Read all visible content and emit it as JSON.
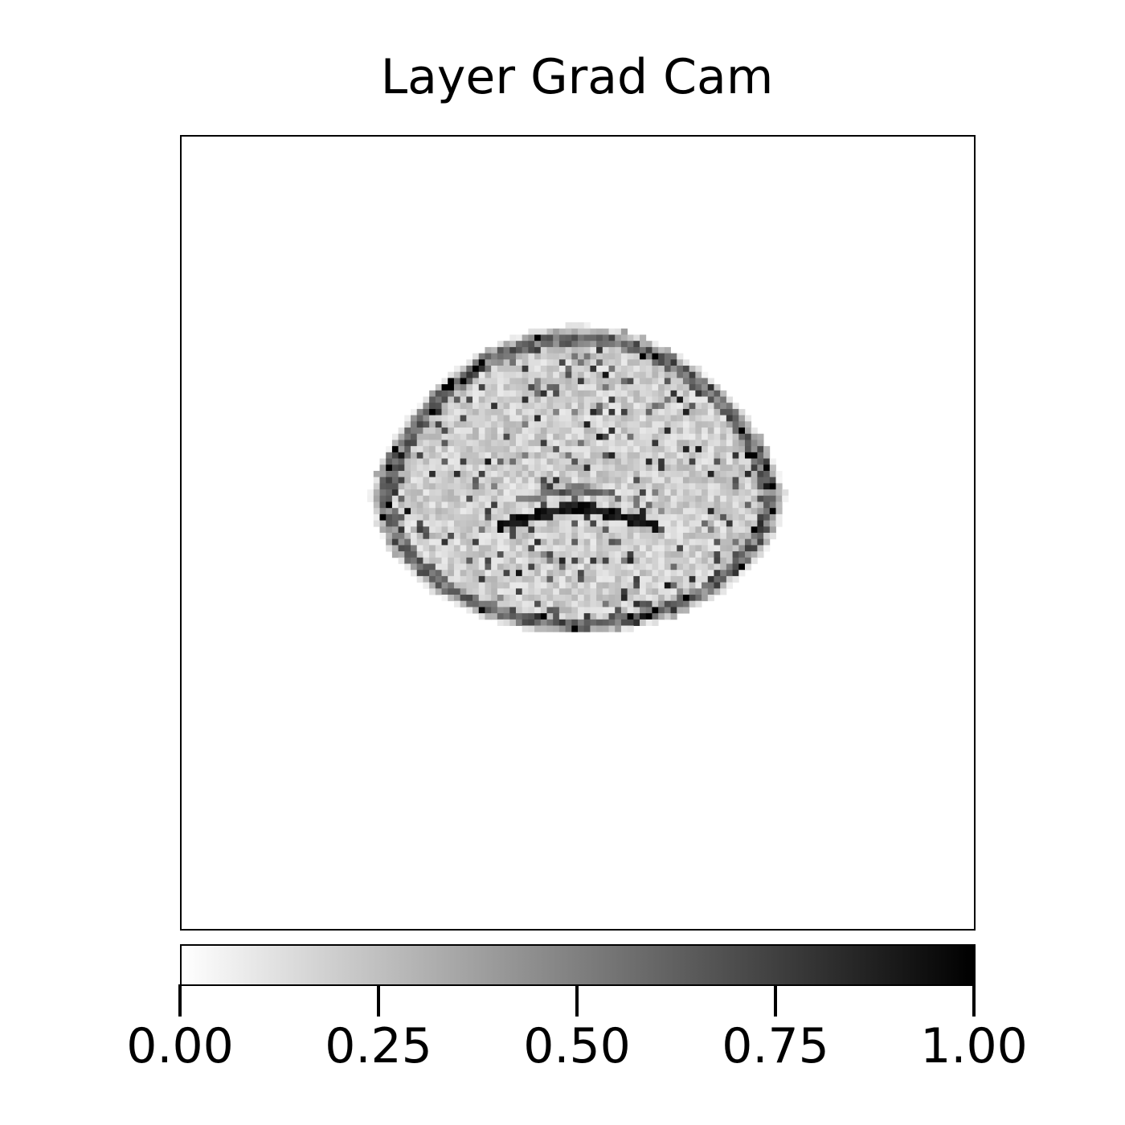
{
  "chart_data": {
    "type": "heatmap",
    "title": "Layer Grad Cam",
    "xlabel": "",
    "ylabel": "",
    "colormap": "Greys",
    "colorbar": {
      "orientation": "horizontal",
      "placement": "bottom",
      "range": [
        0.0,
        1.0
      ],
      "ticks": [
        0.0,
        0.25,
        0.5,
        0.75,
        1.0
      ],
      "tick_labels": [
        "0.00",
        "0.25",
        "0.50",
        "0.75",
        "1.00"
      ]
    },
    "axes_ticks_visible": false,
    "grid": false,
    "description_values": {
      "background_value": 0.0,
      "brain_mask_typical_value": 0.15,
      "strong_activation_value": 0.95
    }
  }
}
